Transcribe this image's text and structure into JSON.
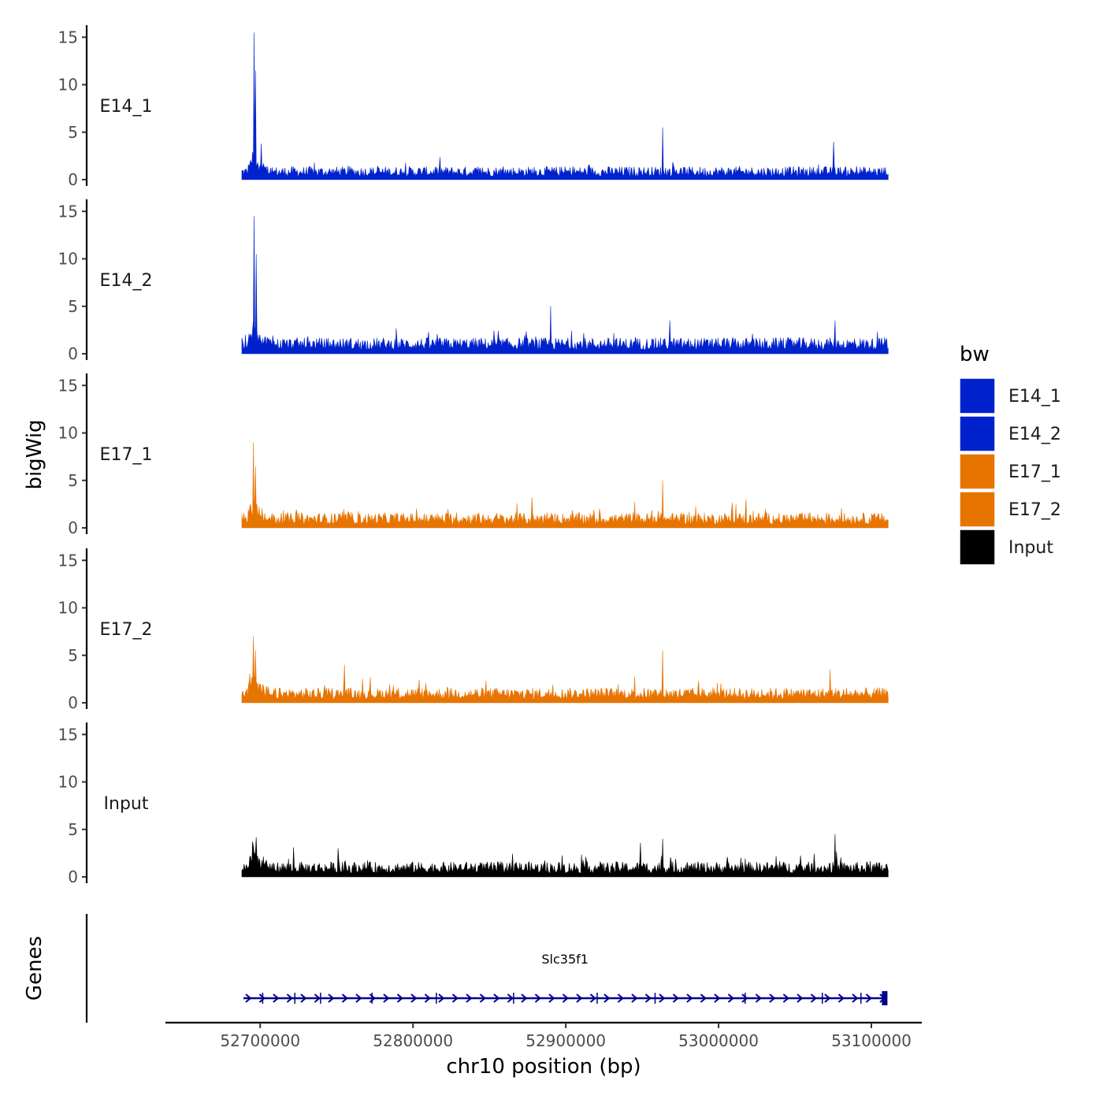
{
  "chart_data": {
    "type": "area",
    "title": "",
    "ylabel": "bigWig",
    "xlabel": "chr10 position (bp)",
    "chromosome": "chr10",
    "region": [
      52688000,
      53111000
    ],
    "xlim": [
      52638000,
      53133000
    ],
    "xticks": [
      52700000,
      52800000,
      52900000,
      53000000,
      53100000
    ],
    "x_tick_labels": [
      "52700000",
      "52800000",
      "52900000",
      "53000000",
      "53100000"
    ],
    "ylim": [
      0,
      16
    ],
    "yticks": [
      0,
      5,
      10,
      15
    ],
    "y_tick_labels": [
      "0",
      "5",
      "10",
      "15"
    ],
    "series": [
      {
        "name": "E14_1",
        "color": "#0022cc",
        "baseline_max": 1.4,
        "peaks": [
          [
            52696000,
            15.5
          ],
          [
            52697000,
            11.5
          ],
          [
            52700500,
            3.8
          ],
          [
            52963500,
            5.5
          ],
          [
            53075500,
            4.0
          ]
        ]
      },
      {
        "name": "E14_2",
        "color": "#0022cc",
        "baseline_max": 1.7,
        "peaks": [
          [
            52696000,
            14.5
          ],
          [
            52697200,
            10.5
          ],
          [
            52890000,
            5.0
          ],
          [
            52968000,
            3.5
          ],
          [
            53076000,
            3.5
          ]
        ]
      },
      {
        "name": "E17_1",
        "color": "#e87400",
        "baseline_max": 1.6,
        "peaks": [
          [
            52695500,
            9.0
          ],
          [
            52697000,
            6.5
          ],
          [
            52963500,
            5.0
          ],
          [
            52878000,
            3.2
          ],
          [
            53018000,
            3.0
          ]
        ]
      },
      {
        "name": "E17_2",
        "color": "#e87400",
        "baseline_max": 1.6,
        "peaks": [
          [
            52695500,
            7.0
          ],
          [
            52697000,
            5.5
          ],
          [
            52963500,
            5.5
          ],
          [
            52755000,
            4.0
          ],
          [
            53073000,
            3.5
          ]
        ]
      },
      {
        "name": "Input",
        "color": "#000000",
        "baseline_max": 1.6,
        "peaks": [
          [
            52963500,
            4.0
          ],
          [
            52949000,
            3.6
          ],
          [
            53076000,
            4.5
          ],
          [
            52751000,
            3.0
          ],
          [
            52722000,
            3.1
          ]
        ]
      }
    ],
    "legend": {
      "title": "bw",
      "position": "right",
      "entries": [
        {
          "label": "E14_1",
          "color": "#0022cc"
        },
        {
          "label": "E14_2",
          "color": "#0022cc"
        },
        {
          "label": "E17_1",
          "color": "#e87400"
        },
        {
          "label": "E17_2",
          "color": "#e87400"
        },
        {
          "label": "Input",
          "color": "#000000"
        }
      ]
    },
    "genes_track": {
      "title": "Genes",
      "color": "#00008b",
      "genes": [
        {
          "name": "Slc35f1",
          "start": 52689000,
          "end": 53110000,
          "strand": "+"
        }
      ]
    }
  }
}
